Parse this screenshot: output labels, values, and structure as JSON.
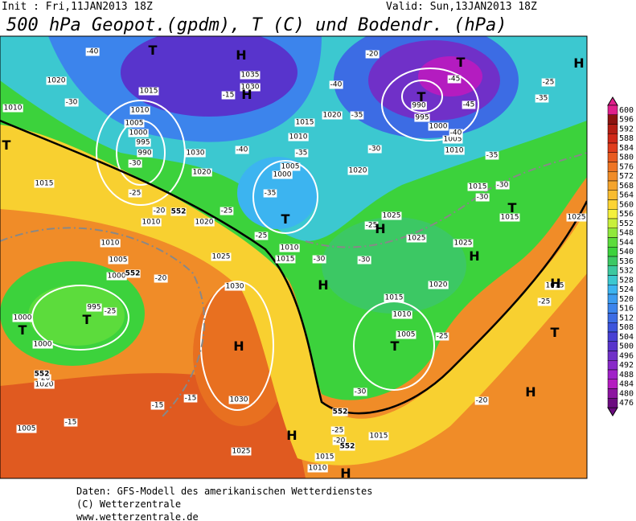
{
  "header": {
    "init": "Init : Fri,11JAN2013 18Z",
    "valid": "Valid: Sun,13JAN2013 18Z",
    "title": "500 hPa Geopot.(gpdm), T (C) und Bodendr. (hPa)"
  },
  "colorbar": {
    "levels": [
      600,
      596,
      592,
      588,
      584,
      580,
      576,
      572,
      568,
      564,
      560,
      556,
      552,
      548,
      544,
      540,
      536,
      532,
      528,
      524,
      520,
      516,
      512,
      508,
      504,
      500,
      496,
      492,
      488,
      484,
      480,
      476
    ],
    "colors": [
      "#e0208c",
      "#8c1410",
      "#b41e14",
      "#d02818",
      "#e03c1c",
      "#e85a20",
      "#ee7424",
      "#f08c28",
      "#f4a42c",
      "#f8bc30",
      "#fcd434",
      "#f4f03c",
      "#c8f03c",
      "#90e83c",
      "#5cdc3c",
      "#3cd23c",
      "#3cc864",
      "#3cc8a0",
      "#3cc8d0",
      "#3cb4f0",
      "#3c9cf0",
      "#3c84ec",
      "#3c6ce4",
      "#3c54dc",
      "#4840d4",
      "#5834cc",
      "#7030c8",
      "#8828c8",
      "#a020c8",
      "#b41cc0",
      "#8c14a0",
      "#6c0c80"
    ]
  },
  "map": {
    "pressure_centers": [
      "T",
      "H",
      "H",
      "T",
      "T",
      "H",
      "T",
      "T",
      "H",
      "H",
      "H",
      "T",
      "T",
      "T",
      "H",
      "T",
      "H",
      "T",
      "H",
      "H",
      "H"
    ],
    "isobar_labels": [
      "1020",
      "1015",
      "1010",
      "1035",
      "1030",
      "1010",
      "1005",
      "1000",
      "995",
      "990",
      "1030",
      "1020",
      "1015",
      "1010",
      "1005",
      "1000",
      "1020",
      "990",
      "995",
      "1000",
      "1005",
      "1010",
      "1020",
      "1015",
      "1010",
      "1020",
      "1010",
      "1005",
      "1000",
      "1025",
      "1030",
      "995",
      "1000",
      "1000",
      "1025",
      "1025",
      "1025",
      "1010",
      "1015",
      "1020",
      "1015",
      "1010",
      "1005",
      "1030",
      "1025",
      "1015",
      "1015",
      "1010",
      "1005",
      "1020",
      "1015",
      "1015",
      "1025",
      "1015"
    ],
    "temperature_labels": [
      "-40",
      "-30",
      "-15",
      "-40",
      "-30",
      "-25",
      "-20",
      "-25",
      "-35",
      "-35",
      "-25",
      "-30",
      "-40",
      "-35",
      "-30",
      "-45",
      "-45",
      "-40",
      "-35",
      "-30",
      "-30",
      "-25",
      "-35",
      "-25",
      "-30",
      "-25",
      "-20",
      "-25",
      "-20",
      "-15",
      "-15",
      "-15",
      "-20",
      "-30",
      "-25",
      "-20",
      "-25",
      "-20"
    ],
    "height_labels": [
      "552",
      "552",
      "552",
      "552",
      "552"
    ]
  },
  "footer": {
    "lines": [
      "Daten: GFS-Modell des amerikanischen Wetterdienstes",
      "(C) Wetterzentrale",
      "www.wetterzentrale.de"
    ]
  }
}
